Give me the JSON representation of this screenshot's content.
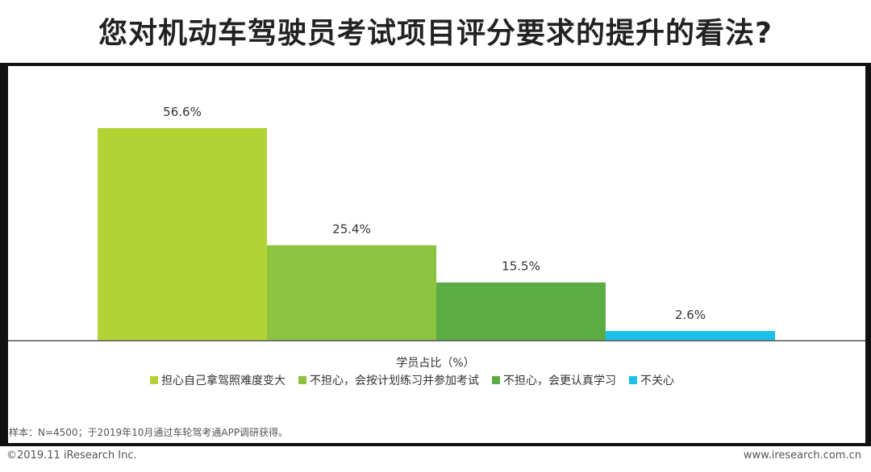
{
  "page": {
    "title": "您对机动车驾驶员考试项目评分要求的提升的看法?",
    "note": "样本：N=4500；于2019年10月通过车轮驾考通APP调研获得。",
    "copyright": "©2019.11 iResearch Inc.",
    "website": "www.iresearch.com.cn"
  },
  "chart_data": {
    "type": "bar",
    "xlabel": "学员占比（%）",
    "ylim": [
      0,
      60
    ],
    "grid": false,
    "legend_position": "bottom",
    "series": [
      {
        "name": "担心自己拿驾照难度变大",
        "value": 56.6,
        "label": "56.6%",
        "color": "#b3d334"
      },
      {
        "name": "不担心，会按计划练习并参加考试",
        "value": 25.4,
        "label": "25.4%",
        "color": "#8cc43f"
      },
      {
        "name": "不担心，会更认真学习",
        "value": 15.5,
        "label": "15.5%",
        "color": "#5aac43"
      },
      {
        "name": "不关心",
        "value": 2.6,
        "label": "2.6%",
        "color": "#1bbfe9"
      }
    ]
  }
}
